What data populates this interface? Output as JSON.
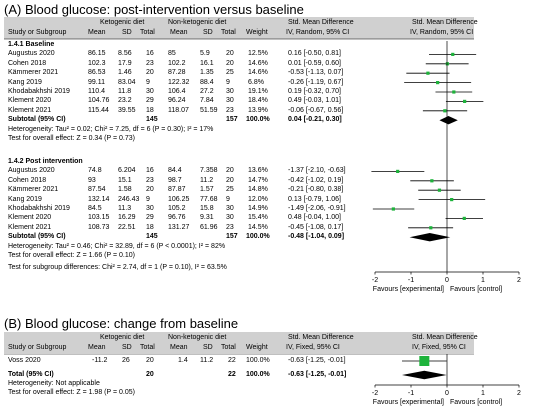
{
  "panelA": {
    "title": "(A) Blood glucose: post-intervention versus baseline",
    "group_ketogenic": "Ketogenic diet",
    "group_non": "Non-ketogenic diet",
    "smd_header": "Std. Mean Difference",
    "smd_header2": "Std. Mean Difference",
    "col_study": "Study or Subgroup",
    "col_mean": "Mean",
    "col_sd": "SD",
    "col_total": "Total",
    "col_mean2": "Mean",
    "col_sd2": "SD",
    "col_total2": "Total",
    "col_weight": "Weight",
    "col_ci": "IV, Random, 95% CI",
    "col_ci2": "IV, Random, 95% CI",
    "sub1": {
      "title": "1.4.1 Baseline",
      "rows": [
        {
          "study": "Augustus 2020",
          "m1": "86.15",
          "sd1": "8.56",
          "n1": "16",
          "m2": "85",
          "sd2": "5.9",
          "n2": "20",
          "w": "12.5%",
          "ci": "0.16 [-0.50, 0.81]",
          "est": 0.16,
          "lo": -0.5,
          "hi": 0.81
        },
        {
          "study": "Cohen 2018",
          "m1": "102.3",
          "sd1": "17.9",
          "n1": "23",
          "m2": "102.2",
          "sd2": "16.1",
          "n2": "20",
          "w": "14.6%",
          "ci": "0.01 [-0.59, 0.60]",
          "est": 0.01,
          "lo": -0.59,
          "hi": 0.6
        },
        {
          "study": "Kämmerer 2021",
          "m1": "86.53",
          "sd1": "1.46",
          "n1": "20",
          "m2": "87.28",
          "sd2": "1.35",
          "n2": "25",
          "w": "14.6%",
          "ci": "-0.53 [-1.13, 0.07]",
          "est": -0.53,
          "lo": -1.13,
          "hi": 0.07
        },
        {
          "study": "Kang 2019",
          "m1": "99.11",
          "sd1": "83.04",
          "n1": "9",
          "m2": "122.32",
          "sd2": "88.4",
          "n2": "9",
          "w": "6.8%",
          "ci": "-0.26 [-1.19, 0.67]",
          "est": -0.26,
          "lo": -1.19,
          "hi": 0.67
        },
        {
          "study": "Khodabakhshi 2019",
          "m1": "110.4",
          "sd1": "11.8",
          "n1": "30",
          "m2": "106.4",
          "sd2": "27.2",
          "n2": "30",
          "w": "19.1%",
          "ci": "0.19 [-0.32, 0.70]",
          "est": 0.19,
          "lo": -0.32,
          "hi": 0.7
        },
        {
          "study": "Klement 2020",
          "m1": "104.76",
          "sd1": "23.2",
          "n1": "29",
          "m2": "96.24",
          "sd2": "7.84",
          "n2": "30",
          "w": "18.4%",
          "ci": "0.49 [-0.03, 1.01]",
          "est": 0.49,
          "lo": -0.03,
          "hi": 1.01
        },
        {
          "study": "Klement 2021",
          "m1": "115.44",
          "sd1": "39.55",
          "n1": "18",
          "m2": "118.07",
          "sd2": "51.59",
          "n2": "23",
          "w": "13.9%",
          "ci": "-0.06 [-0.67, 0.56]",
          "est": -0.06,
          "lo": -0.67,
          "hi": 0.56
        }
      ],
      "subtotal_label": "Subtotal (95% CI)",
      "subtotal_n1": "145",
      "subtotal_n2": "157",
      "subtotal_w": "100.0%",
      "subtotal_ci": "0.04 [-0.21, 0.30]",
      "subtotal_est": 0.04,
      "subtotal_lo": -0.21,
      "subtotal_hi": 0.3,
      "het": "Heterogeneity: Tau² = 0.02; Chi² = 7.25, df = 6 (P = 0.30); I² = 17%",
      "test": "Test for overall effect: Z = 0.34 (P = 0.73)"
    },
    "sub2": {
      "title": "1.4.2 Post intervention",
      "rows": [
        {
          "study": "Augustus 2020",
          "m1": "74.8",
          "sd1": "6.204",
          "n1": "16",
          "m2": "84.4",
          "sd2": "7.358",
          "n2": "20",
          "w": "13.6%",
          "ci": "-1.37 [-2.10, -0.63]",
          "est": -1.37,
          "lo": -2.1,
          "hi": -0.63
        },
        {
          "study": "Cohen 2018",
          "m1": "93",
          "sd1": "15.1",
          "n1": "23",
          "m2": "98.7",
          "sd2": "11.2",
          "n2": "20",
          "w": "14.7%",
          "ci": "-0.42 [-1.02, 0.19]",
          "est": -0.42,
          "lo": -1.02,
          "hi": 0.19
        },
        {
          "study": "Kämmerer 2021",
          "m1": "87.54",
          "sd1": "1.58",
          "n1": "20",
          "m2": "87.87",
          "sd2": "1.57",
          "n2": "25",
          "w": "14.8%",
          "ci": "-0.21 [-0.80, 0.38]",
          "est": -0.21,
          "lo": -0.8,
          "hi": 0.38
        },
        {
          "study": "Kang 2019",
          "m1": "132.14",
          "sd1": "246.43",
          "n1": "9",
          "m2": "106.25",
          "sd2": "77.68",
          "n2": "9",
          "w": "12.0%",
          "ci": "0.13 [-0.79, 1.06]",
          "est": 0.13,
          "lo": -0.79,
          "hi": 1.06
        },
        {
          "study": "Khodabakhshi 2019",
          "m1": "84.5",
          "sd1": "11.3",
          "n1": "30",
          "m2": "105.2",
          "sd2": "15.8",
          "n2": "30",
          "w": "14.9%",
          "ci": "-1.49 [-2.06, -0.91]",
          "est": -1.49,
          "lo": -2.06,
          "hi": -0.91
        },
        {
          "study": "Klement 2020",
          "m1": "103.15",
          "sd1": "16.29",
          "n1": "29",
          "m2": "96.76",
          "sd2": "9.31",
          "n2": "30",
          "w": "15.4%",
          "ci": "0.48 [-0.04, 1.00]",
          "est": 0.48,
          "lo": -0.04,
          "hi": 1.0
        },
        {
          "study": "Klement 2021",
          "m1": "108.73",
          "sd1": "22.51",
          "n1": "18",
          "m2": "131.27",
          "sd2": "61.96",
          "n2": "23",
          "w": "14.5%",
          "ci": "-0.45 [-1.08, 0.17]",
          "est": -0.45,
          "lo": -1.08,
          "hi": 0.17
        }
      ],
      "subtotal_label": "Subtotal (95% CI)",
      "subtotal_n1": "145",
      "subtotal_n2": "157",
      "subtotal_w": "100.0%",
      "subtotal_ci": "-0.48 [-1.04, 0.09]",
      "subtotal_est": -0.48,
      "subtotal_lo": -1.04,
      "subtotal_hi": 0.09,
      "het": "Heterogeneity: Tau² = 0.46; Chi² = 32.89, df = 6 (P < 0.0001); I² = 82%",
      "test": "Test for overall effect: Z = 1.66 (P = 0.10)"
    },
    "subgroup_diff": "Test for subgroup differences: Chi² = 2.74, df = 1 (P = 0.10), I² = 63.5%",
    "axis": {
      "ticks": [
        "-2",
        "-1",
        "0",
        "1",
        "2"
      ],
      "tick_values": [
        -2,
        -1,
        0,
        1,
        2
      ],
      "left_label": "Favours [experimental]",
      "right_label": "Favours [control]"
    }
  },
  "panelB": {
    "title": "(B) Blood glucose: change from baseline",
    "group_ketogenic": "Ketogenic diet",
    "group_non": "Non-ketogenic diet",
    "smd_header": "Std. Mean Difference",
    "smd_header2": "Std. Mean Difference",
    "col_study": "Study or Subgroup",
    "col_mean": "Mean",
    "col_sd": "SD",
    "col_total": "Total",
    "col_mean2": "Mean",
    "col_sd2": "SD",
    "col_total2": "Total",
    "col_weight": "Weight",
    "col_ci": "IV, Fixed, 95% CI",
    "col_ci2": "IV, Fixed, 95% CI",
    "row": {
      "study": "Voss 2020",
      "m1": "-11.2",
      "sd1": "26",
      "n1": "20",
      "m2": "1.4",
      "sd2": "11.2",
      "n2": "22",
      "w": "100.0%",
      "ci": "-0.63 [-1.25, -0.01]",
      "est": -0.63,
      "lo": -1.25,
      "hi": -0.01
    },
    "total_label": "Total (95% CI)",
    "total_n1": "20",
    "total_n2": "22",
    "total_w": "100.0%",
    "total_ci": "-0.63 [-1.25, -0.01]",
    "total_est": -0.63,
    "total_lo": -1.25,
    "total_hi": -0.01,
    "het": "Heterogeneity: Not applicable",
    "test": "Test for overall effect: Z = 1.98 (P = 0.05)",
    "axis": {
      "ticks": [
        "-2",
        "-1",
        "0",
        "1",
        "2"
      ],
      "tick_values": [
        -2,
        -1,
        0,
        1,
        2
      ],
      "left_label": "Favours [experimental]",
      "right_label": "Favours [control]"
    }
  },
  "colors": {
    "header_bg": "#d0d0d0",
    "study_marker": "#1db33b",
    "diamond": "#000000"
  }
}
